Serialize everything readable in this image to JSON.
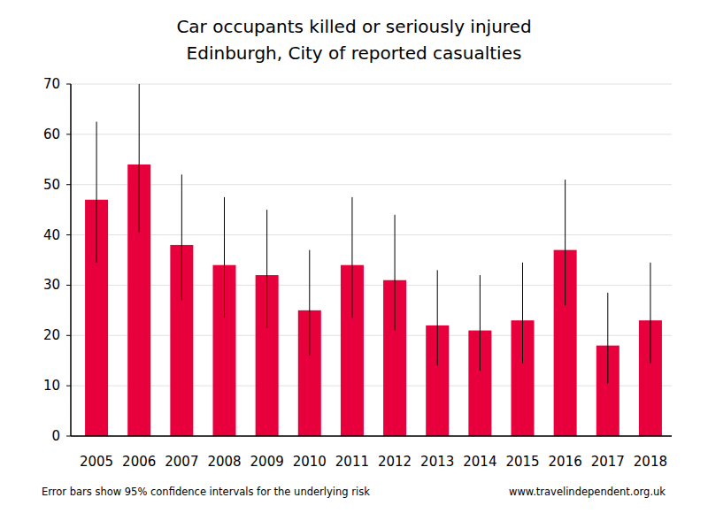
{
  "chart_data": {
    "type": "bar",
    "title": "Car occupants killed or seriously injured",
    "subtitle": "Edinburgh, City of reported casualties",
    "categories": [
      "2005",
      "2006",
      "2007",
      "2008",
      "2009",
      "2010",
      "2011",
      "2012",
      "2013",
      "2014",
      "2015",
      "2016",
      "2017",
      "2018"
    ],
    "values": [
      47,
      54,
      38,
      34,
      32,
      25,
      34,
      31,
      22,
      21,
      23,
      37,
      18,
      23
    ],
    "ci_low": [
      34.5,
      40.5,
      27,
      23.5,
      21.5,
      16,
      23.5,
      21,
      14,
      13,
      14.5,
      26,
      10.5,
      14.5
    ],
    "ci_high": [
      62.5,
      70.5,
      52,
      47.5,
      45,
      37,
      47.5,
      44,
      33,
      32,
      34.5,
      51,
      28.5,
      34.5
    ],
    "color": "#e8003d",
    "ylim": [
      0,
      70
    ],
    "yticks": [
      0,
      10,
      20,
      30,
      40,
      50,
      60,
      70
    ],
    "grid": true,
    "note": "Error bars show 95% confidence intervals for the underlying risk",
    "source": "www.travelindependent.org.uk"
  }
}
